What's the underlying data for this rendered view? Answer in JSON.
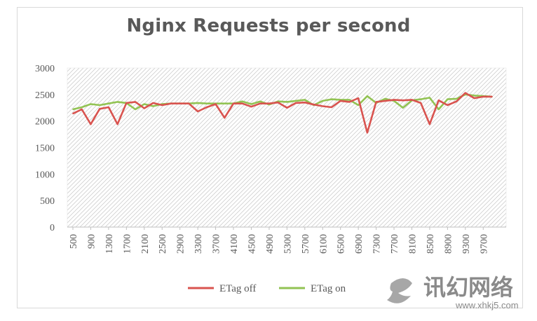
{
  "chart_data": {
    "type": "line",
    "title": "Nginx Requests per second",
    "xlabel": "",
    "ylabel": "",
    "ylim": [
      0,
      3000
    ],
    "yticks": [
      0,
      500,
      1000,
      1500,
      2000,
      2500,
      3000
    ],
    "x": [
      500,
      700,
      900,
      1100,
      1300,
      1500,
      1700,
      1900,
      2100,
      2300,
      2500,
      2700,
      2900,
      3100,
      3300,
      3500,
      3700,
      3900,
      4100,
      4300,
      4500,
      4700,
      4900,
      5100,
      5300,
      5500,
      5700,
      5900,
      6100,
      6300,
      6500,
      6700,
      6900,
      7100,
      7300,
      7500,
      7700,
      7900,
      8100,
      8300,
      8500,
      8700,
      8900,
      9100,
      9300,
      9500,
      9700,
      9900
    ],
    "xtick_labels": [
      "500",
      "900",
      "1300",
      "1700",
      "2100",
      "2500",
      "2900",
      "3300",
      "3700",
      "4100",
      "4500",
      "4900",
      "5300",
      "5700",
      "6100",
      "6500",
      "6900",
      "7300",
      "7700",
      "8100",
      "8500",
      "8900",
      "9300",
      "9700"
    ],
    "grid": "diagonal hatch",
    "legend_position": "bottom",
    "series": [
      {
        "name": "ETag off",
        "color": "#d9534f",
        "values": [
          2140,
          2220,
          1940,
          2230,
          2260,
          1940,
          2340,
          2360,
          2240,
          2340,
          2300,
          2330,
          2330,
          2330,
          2180,
          2260,
          2320,
          2060,
          2330,
          2330,
          2270,
          2330,
          2330,
          2350,
          2250,
          2340,
          2350,
          2310,
          2280,
          2260,
          2380,
          2360,
          2430,
          1780,
          2360,
          2380,
          2400,
          2390,
          2400,
          2340,
          1940,
          2390,
          2300,
          2370,
          2530,
          2430,
          2460,
          2460
        ]
      },
      {
        "name": "ETag on",
        "color": "#92c353",
        "values": [
          2220,
          2260,
          2320,
          2300,
          2330,
          2360,
          2340,
          2220,
          2320,
          2280,
          2320,
          2330,
          2330,
          2330,
          2340,
          2330,
          2330,
          2330,
          2330,
          2370,
          2320,
          2370,
          2310,
          2370,
          2360,
          2380,
          2400,
          2300,
          2380,
          2410,
          2400,
          2400,
          2300,
          2470,
          2340,
          2420,
          2380,
          2250,
          2390,
          2410,
          2440,
          2220,
          2410,
          2420,
          2500,
          2480,
          2470,
          2460
        ]
      }
    ]
  },
  "watermark": {
    "glyphs": "讯幻网络",
    "url": "www.xhkj5.com"
  }
}
